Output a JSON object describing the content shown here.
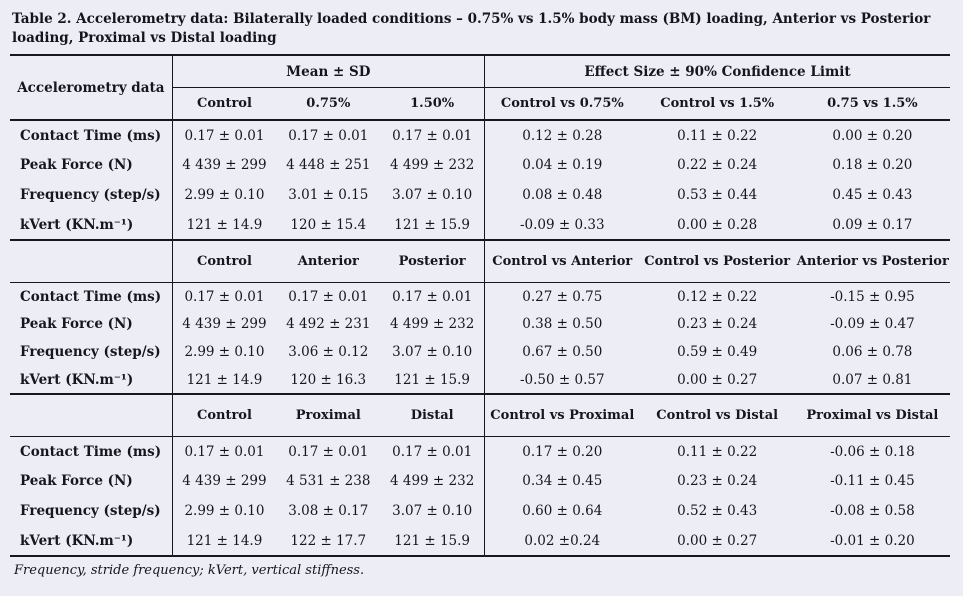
{
  "title": "Table 2. Accelerometry data: Bilaterally loaded conditions – 0.75% vs 1.5% body mass (BM) loading, Anterior vs Posterior loading, Proximal vs Distal loading",
  "colors": {
    "background": "#ededf6",
    "text": "#16161e",
    "rule": "#17171c"
  },
  "table": {
    "row_header": "Accelerometry data",
    "group_headers": [
      "Mean ± SD",
      "Effect Size ± 90% Confidence Limit"
    ],
    "footnote": "Frequency, stride frequency; kVert, vertical stiffness.",
    "sections": [
      {
        "mean_cols": [
          "Control",
          "0.75%",
          "1.50%"
        ],
        "effect_cols": [
          "Control vs 0.75%",
          "Control vs 1.5%",
          "0.75 vs 1.5%"
        ],
        "rows": [
          {
            "label": "Contact Time (ms)",
            "values": [
              "0.17 ± 0.01",
              "0.17 ± 0.01",
              "0.17 ± 0.01",
              "0.12 ± 0.28",
              "0.11 ± 0.22",
              "0.00 ± 0.20"
            ]
          },
          {
            "label": "Peak Force (N)",
            "values": [
              "4 439 ± 299",
              "4 448 ± 251",
              "4 499 ± 232",
              "0.04 ± 0.19",
              "0.22 ± 0.24",
              "0.18 ± 0.20"
            ]
          },
          {
            "label": "Frequency (step/s)",
            "values": [
              "2.99 ± 0.10",
              "3.01 ± 0.15",
              "3.07 ± 0.10",
              "0.08 ± 0.48",
              "0.53 ± 0.44",
              "0.45 ± 0.43"
            ]
          },
          {
            "label": "kVert (KN.m⁻¹)",
            "values": [
              "121 ± 14.9",
              "120 ± 15.4",
              "121 ± 15.9",
              "-0.09 ± 0.33",
              "0.00 ± 0.28",
              "0.09 ± 0.17"
            ]
          }
        ]
      },
      {
        "mean_cols": [
          "Control",
          "Anterior",
          "Posterior"
        ],
        "effect_cols": [
          "Control vs Anterior",
          "Control vs Posterior",
          "Anterior vs Posterior"
        ],
        "rows": [
          {
            "label": "Contact Time (ms)",
            "values": [
              "0.17 ± 0.01",
              "0.17 ± 0.01",
              "0.17 ± 0.01",
              "0.27 ± 0.75",
              "0.12 ± 0.22",
              "-0.15 ± 0.95"
            ]
          },
          {
            "label": "Peak Force (N)",
            "values": [
              "4 439 ± 299",
              "4 492 ± 231",
              "4 499 ± 232",
              "0.38 ± 0.50",
              "0.23 ± 0.24",
              "-0.09 ± 0.47"
            ]
          },
          {
            "label": "Frequency (step/s)",
            "values": [
              "2.99 ± 0.10",
              "3.06 ± 0.12",
              "3.07 ± 0.10",
              "0.67 ± 0.50",
              "0.59 ± 0.49",
              "0.06 ± 0.78"
            ]
          },
          {
            "label": "kVert (KN.m⁻¹)",
            "values": [
              "121 ± 14.9",
              "120 ± 16.3",
              "121 ± 15.9",
              "-0.50 ± 0.57",
              "0.00 ± 0.27",
              "0.07 ± 0.81"
            ]
          }
        ]
      },
      {
        "mean_cols": [
          "Control",
          "Proximal",
          "Distal"
        ],
        "effect_cols": [
          "Control vs Proximal",
          "Control vs Distal",
          "Proximal vs Distal"
        ],
        "rows": [
          {
            "label": "Contact Time (ms)",
            "values": [
              "0.17 ± 0.01",
              "0.17 ± 0.01",
              "0.17 ± 0.01",
              "0.17 ± 0.20",
              "0.11 ± 0.22",
              "-0.06 ± 0.18"
            ]
          },
          {
            "label": "Peak Force (N)",
            "values": [
              "4 439 ± 299",
              "4 531 ± 238",
              "4 499 ± 232",
              "0.34 ± 0.45",
              "0.23 ± 0.24",
              "-0.11 ± 0.45"
            ]
          },
          {
            "label": "Frequency (step/s)",
            "values": [
              "2.99 ± 0.10",
              "3.08 ± 0.17",
              "3.07 ± 0.10",
              "0.60 ± 0.64",
              "0.52 ± 0.43",
              "-0.08 ± 0.58"
            ]
          },
          {
            "label": "kVert (KN.m⁻¹)",
            "values": [
              "121 ± 14.9",
              "122 ± 17.7",
              "121 ± 15.9",
              "0.02 ±0.24",
              "0.00 ± 0.27",
              "-0.01 ± 0.20"
            ]
          }
        ]
      }
    ]
  }
}
